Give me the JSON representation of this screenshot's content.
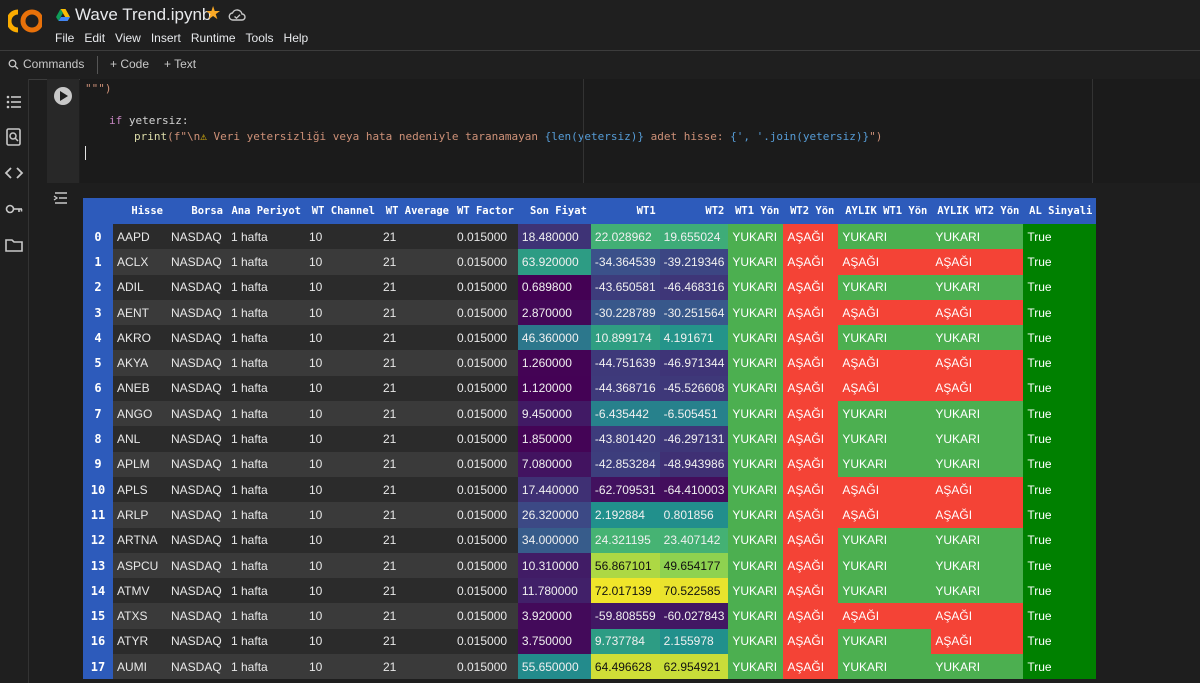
{
  "app": {
    "title": "Wave Trend.ipynb",
    "menu": [
      "File",
      "Edit",
      "View",
      "Insert",
      "Runtime",
      "Tools",
      "Help"
    ]
  },
  "toolbar": {
    "commands_label": "Commands",
    "code_label": "+ Code",
    "text_label": "+ Text"
  },
  "code": {
    "line1": "\"\"\")",
    "line3_kw": "if",
    "line3_rest": " yetersiz:",
    "line4_fn": "print",
    "line4_a": "(f\"\\n",
    "line4_warn": "⚠",
    "line4_b": " Veri yetersizliği veya hata nedeniyle taranamayan ",
    "line4_c": "{len(yetersiz)}",
    "line4_d": " adet hisse: ",
    "line4_e": "{', '.join(yetersiz)}",
    "line4_f": "\")"
  },
  "table": {
    "columns": [
      "",
      "Hisse",
      "Borsa",
      "Ana Periyot",
      "WT Channel",
      "WT Average",
      "WT Factor",
      "Son Fiyat",
      "WT1",
      "WT2",
      "WT1 Yön",
      "WT2 Yön",
      "AYLIK WT1 Yön",
      "AYLIK WT2 Yön",
      "AL Sinyali"
    ],
    "rows": [
      {
        "i": "0",
        "h": "AAPD",
        "b": "NASDAQ",
        "p": "1 hafta",
        "c": "10",
        "a": "21",
        "f": "0.015000",
        "s": "18.480000",
        "w1": "22.028962",
        "w2": "19.655024",
        "y1": "YUKARI",
        "y2": "AŞAĞI",
        "m1": "YUKARI",
        "m2": "YUKARI",
        "al": "True"
      },
      {
        "i": "1",
        "h": "ACLX",
        "b": "NASDAQ",
        "p": "1 hafta",
        "c": "10",
        "a": "21",
        "f": "0.015000",
        "s": "63.920000",
        "w1": "-34.364539",
        "w2": "-39.219346",
        "y1": "YUKARI",
        "y2": "AŞAĞI",
        "m1": "AŞAĞI",
        "m2": "AŞAĞI",
        "al": "True"
      },
      {
        "i": "2",
        "h": "ADIL",
        "b": "NASDAQ",
        "p": "1 hafta",
        "c": "10",
        "a": "21",
        "f": "0.015000",
        "s": "0.689800",
        "w1": "-43.650581",
        "w2": "-46.468316",
        "y1": "YUKARI",
        "y2": "AŞAĞI",
        "m1": "YUKARI",
        "m2": "YUKARI",
        "al": "True"
      },
      {
        "i": "3",
        "h": "AENT",
        "b": "NASDAQ",
        "p": "1 hafta",
        "c": "10",
        "a": "21",
        "f": "0.015000",
        "s": "2.870000",
        "w1": "-30.228789",
        "w2": "-30.251564",
        "y1": "YUKARI",
        "y2": "AŞAĞI",
        "m1": "AŞAĞI",
        "m2": "AŞAĞI",
        "al": "True"
      },
      {
        "i": "4",
        "h": "AKRO",
        "b": "NASDAQ",
        "p": "1 hafta",
        "c": "10",
        "a": "21",
        "f": "0.015000",
        "s": "46.360000",
        "w1": "10.899174",
        "w2": "4.191671",
        "y1": "YUKARI",
        "y2": "AŞAĞI",
        "m1": "YUKARI",
        "m2": "YUKARI",
        "al": "True"
      },
      {
        "i": "5",
        "h": "AKYA",
        "b": "NASDAQ",
        "p": "1 hafta",
        "c": "10",
        "a": "21",
        "f": "0.015000",
        "s": "1.260000",
        "w1": "-44.751639",
        "w2": "-46.971344",
        "y1": "YUKARI",
        "y2": "AŞAĞI",
        "m1": "AŞAĞI",
        "m2": "AŞAĞI",
        "al": "True"
      },
      {
        "i": "6",
        "h": "ANEB",
        "b": "NASDAQ",
        "p": "1 hafta",
        "c": "10",
        "a": "21",
        "f": "0.015000",
        "s": "1.120000",
        "w1": "-44.368716",
        "w2": "-45.526608",
        "y1": "YUKARI",
        "y2": "AŞAĞI",
        "m1": "AŞAĞI",
        "m2": "AŞAĞI",
        "al": "True"
      },
      {
        "i": "7",
        "h": "ANGO",
        "b": "NASDAQ",
        "p": "1 hafta",
        "c": "10",
        "a": "21",
        "f": "0.015000",
        "s": "9.450000",
        "w1": "-6.435442",
        "w2": "-6.505451",
        "y1": "YUKARI",
        "y2": "AŞAĞI",
        "m1": "YUKARI",
        "m2": "YUKARI",
        "al": "True"
      },
      {
        "i": "8",
        "h": "ANL",
        "b": "NASDAQ",
        "p": "1 hafta",
        "c": "10",
        "a": "21",
        "f": "0.015000",
        "s": "1.850000",
        "w1": "-43.801420",
        "w2": "-46.297131",
        "y1": "YUKARI",
        "y2": "AŞAĞI",
        "m1": "YUKARI",
        "m2": "YUKARI",
        "al": "True"
      },
      {
        "i": "9",
        "h": "APLM",
        "b": "NASDAQ",
        "p": "1 hafta",
        "c": "10",
        "a": "21",
        "f": "0.015000",
        "s": "7.080000",
        "w1": "-42.853284",
        "w2": "-48.943986",
        "y1": "YUKARI",
        "y2": "AŞAĞI",
        "m1": "YUKARI",
        "m2": "YUKARI",
        "al": "True"
      },
      {
        "i": "10",
        "h": "APLS",
        "b": "NASDAQ",
        "p": "1 hafta",
        "c": "10",
        "a": "21",
        "f": "0.015000",
        "s": "17.440000",
        "w1": "-62.709531",
        "w2": "-64.410003",
        "y1": "YUKARI",
        "y2": "AŞAĞI",
        "m1": "AŞAĞI",
        "m2": "AŞAĞI",
        "al": "True"
      },
      {
        "i": "11",
        "h": "ARLP",
        "b": "NASDAQ",
        "p": "1 hafta",
        "c": "10",
        "a": "21",
        "f": "0.015000",
        "s": "26.320000",
        "w1": "2.192884",
        "w2": "0.801856",
        "y1": "YUKARI",
        "y2": "AŞAĞI",
        "m1": "AŞAĞI",
        "m2": "AŞAĞI",
        "al": "True"
      },
      {
        "i": "12",
        "h": "ARTNA",
        "b": "NASDAQ",
        "p": "1 hafta",
        "c": "10",
        "a": "21",
        "f": "0.015000",
        "s": "34.000000",
        "w1": "24.321195",
        "w2": "23.407142",
        "y1": "YUKARI",
        "y2": "AŞAĞI",
        "m1": "YUKARI",
        "m2": "YUKARI",
        "al": "True"
      },
      {
        "i": "13",
        "h": "ASPCU",
        "b": "NASDAQ",
        "p": "1 hafta",
        "c": "10",
        "a": "21",
        "f": "0.015000",
        "s": "10.310000",
        "w1": "56.867101",
        "w2": "49.654177",
        "y1": "YUKARI",
        "y2": "AŞAĞI",
        "m1": "YUKARI",
        "m2": "YUKARI",
        "al": "True"
      },
      {
        "i": "14",
        "h": "ATMV",
        "b": "NASDAQ",
        "p": "1 hafta",
        "c": "10",
        "a": "21",
        "f": "0.015000",
        "s": "11.780000",
        "w1": "72.017139",
        "w2": "70.522585",
        "y1": "YUKARI",
        "y2": "AŞAĞI",
        "m1": "YUKARI",
        "m2": "YUKARI",
        "al": "True"
      },
      {
        "i": "15",
        "h": "ATXS",
        "b": "NASDAQ",
        "p": "1 hafta",
        "c": "10",
        "a": "21",
        "f": "0.015000",
        "s": "3.920000",
        "w1": "-59.808559",
        "w2": "-60.027843",
        "y1": "YUKARI",
        "y2": "AŞAĞI",
        "m1": "AŞAĞI",
        "m2": "AŞAĞI",
        "al": "True"
      },
      {
        "i": "16",
        "h": "ATYR",
        "b": "NASDAQ",
        "p": "1 hafta",
        "c": "10",
        "a": "21",
        "f": "0.015000",
        "s": "3.750000",
        "w1": "9.737784",
        "w2": "2.155978",
        "y1": "YUKARI",
        "y2": "AŞAĞI",
        "m1": "YUKARI",
        "m2": "AŞAĞI",
        "al": "True"
      },
      {
        "i": "17",
        "h": "AUMI",
        "b": "NASDAQ",
        "p": "1 hafta",
        "c": "10",
        "a": "21",
        "f": "0.015000",
        "s": "55.650000",
        "w1": "64.496628",
        "w2": "62.954921",
        "y1": "YUKARI",
        "y2": "AŞAĞI",
        "m1": "YUKARI",
        "m2": "YUKARI",
        "al": "True"
      }
    ]
  },
  "colors": {
    "up": "#4caf50",
    "down": "#f44336",
    "signal": "#008000",
    "header": "#2d5bbb"
  }
}
